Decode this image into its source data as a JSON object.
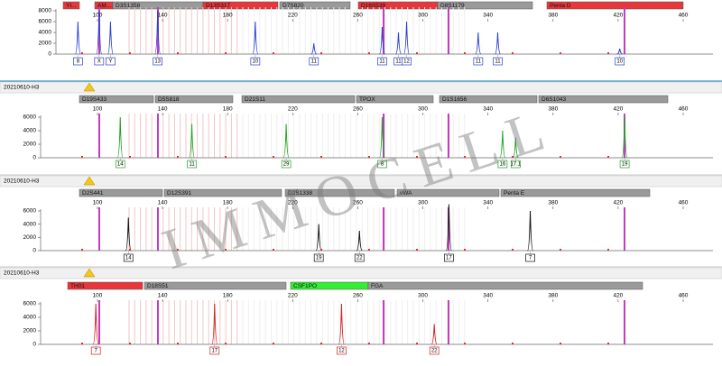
{
  "watermark": "IMMOCELL",
  "panels": [
    {
      "color": "#2b3fd0",
      "ylim": [
        0,
        8000
      ],
      "yticks": [
        0,
        2000,
        4000,
        6000,
        8000
      ],
      "xticks": [
        100,
        140,
        180,
        220,
        260,
        300,
        340,
        380,
        420,
        460
      ],
      "loci": [
        {
          "name": "YI...",
          "color": "#e8363a"
        },
        {
          "name": "AM...",
          "color": "#e8363a"
        },
        {
          "name": "D3S1358",
          "color": "#9a9a9a"
        },
        {
          "name": "D13S317",
          "color": "#e8363a"
        },
        {
          "name": "D7S820",
          "color": "#9a9a9a"
        },
        {
          "name": "D16S539",
          "color": "#e8363a"
        },
        {
          "name": "D8S1179",
          "color": "#9a9a9a"
        },
        {
          "name": "Penta D",
          "color": "#e8363a"
        }
      ],
      "peaks": [
        {
          "allele": "8",
          "size": 88,
          "height": 6000
        },
        {
          "allele": "X",
          "size": 101,
          "height": 8000
        },
        {
          "allele": "Y",
          "size": 108,
          "height": 6000
        },
        {
          "allele": "13",
          "size": 137,
          "height": 8000
        },
        {
          "allele": "10",
          "size": 197,
          "height": 6000
        },
        {
          "allele": "11",
          "size": 233,
          "height": 2000
        },
        {
          "allele": "11",
          "size": 275,
          "height": 5000
        },
        {
          "allele": "11",
          "size": 285,
          "height": 4000
        },
        {
          "allele": "12",
          "size": 290,
          "height": 6000
        },
        {
          "allele": "11",
          "size": 334,
          "height": 4000
        },
        {
          "allele": "11",
          "size": 346,
          "height": 4000
        },
        {
          "allele": "10",
          "size": 421,
          "height": 1000
        }
      ]
    },
    {
      "sample": "20210610-H3",
      "color": "#1fa31f",
      "ylim": [
        0,
        6000
      ],
      "yticks": [
        0,
        2000,
        4000,
        6000
      ],
      "xticks": [
        100,
        140,
        180,
        220,
        260,
        300,
        340,
        380,
        420,
        460
      ],
      "loci": [
        {
          "name": "D19S433",
          "color": "#9a9a9a"
        },
        {
          "name": "D5S818",
          "color": "#9a9a9a"
        },
        {
          "name": "D21S11",
          "color": "#9a9a9a"
        },
        {
          "name": "TPOX",
          "color": "#9a9a9a"
        },
        {
          "name": "D1S1656",
          "color": "#9a9a9a"
        },
        {
          "name": "D6S1043",
          "color": "#9a9a9a"
        }
      ],
      "peaks": [
        {
          "allele": "14",
          "size": 114,
          "height": 6000
        },
        {
          "allele": "11",
          "size": 158,
          "height": 5000
        },
        {
          "allele": "29",
          "size": 216,
          "height": 5000
        },
        {
          "allele": "8",
          "size": 275,
          "height": 6000
        },
        {
          "allele": "16",
          "size": 349,
          "height": 4000
        },
        {
          "allele": "17.1",
          "size": 357,
          "height": 3000
        },
        {
          "allele": "19",
          "size": 424,
          "height": 6000
        }
      ]
    },
    {
      "sample": "20210610-H3",
      "color": "#111111",
      "ylim": [
        0,
        6000
      ],
      "yticks": [
        0,
        2000,
        4000,
        6000
      ],
      "xticks": [
        100,
        140,
        180,
        220,
        260,
        300,
        340,
        380,
        420,
        460
      ],
      "loci": [
        {
          "name": "D2S441",
          "color": "#9a9a9a"
        },
        {
          "name": "D12S391",
          "color": "#9a9a9a"
        },
        {
          "name": "D2S1338",
          "color": "#9a9a9a"
        },
        {
          "name": "vWA",
          "color": "#9a9a9a"
        },
        {
          "name": "Penta E",
          "color": "#9a9a9a"
        }
      ],
      "peaks": [
        {
          "allele": "14",
          "size": 119,
          "height": 5000
        },
        {
          "allele": "19",
          "size": 236,
          "height": 4000
        },
        {
          "allele": "22",
          "size": 261,
          "height": 3000
        },
        {
          "allele": "17",
          "size": 316,
          "height": 7000
        },
        {
          "allele": "7",
          "size": 366,
          "height": 6000
        }
      ]
    },
    {
      "sample": "20210610-H3",
      "color": "#d42020",
      "ylim": [
        0,
        6000
      ],
      "yticks": [
        0,
        2000,
        4000,
        6000
      ],
      "xticks": [
        100,
        140,
        180,
        220,
        260,
        300,
        340,
        380,
        420,
        460
      ],
      "loci": [
        {
          "name": "TH01",
          "color": "#e8363a"
        },
        {
          "name": "D18S51",
          "color": "#9a9a9a"
        },
        {
          "name": "CSF1PO",
          "color": "#33ee33"
        },
        {
          "name": "FGA",
          "color": "#9a9a9a"
        }
      ],
      "peaks": [
        {
          "allele": "7",
          "size": 99,
          "height": 6000
        },
        {
          "allele": "17",
          "size": 172,
          "height": 6000
        },
        {
          "allele": "12",
          "size": 250,
          "height": 6000
        },
        {
          "allele": "22",
          "size": 307,
          "height": 3000
        }
      ]
    }
  ]
}
